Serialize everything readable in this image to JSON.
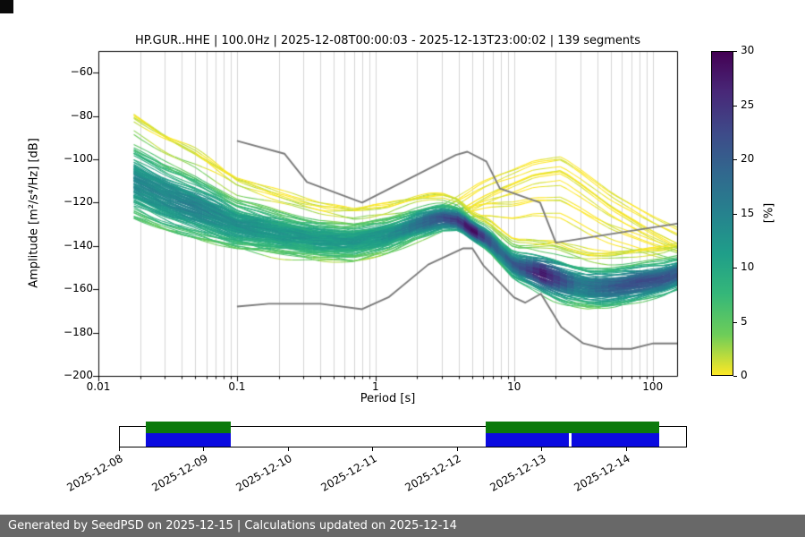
{
  "title": "HP.GUR..HHE | 100.0Hz | 2025-12-08T00:00:03 - 2025-12-13T23:00:02 | 139 segments",
  "axes": {
    "xlabel": "Period [s]",
    "ylabel": "Amplitude [m²/s⁴/Hz] [dB]",
    "x_ticks": [
      "0.01",
      "0.1",
      "1",
      "10",
      "100"
    ],
    "x_tick_values": [
      0.01,
      0.1,
      1,
      10,
      100
    ],
    "y_ticks": [
      "−60",
      "−80",
      "−100",
      "−120",
      "−140",
      "−160",
      "−180",
      "−200"
    ],
    "y_tick_values": [
      -60,
      -80,
      -100,
      -120,
      -140,
      -160,
      -180,
      -200
    ]
  },
  "colorbar": {
    "label": "[%]",
    "tick_labels": [
      "0",
      "5",
      "10",
      "15",
      "20",
      "25",
      "30"
    ],
    "tick_values": [
      0,
      5,
      10,
      15,
      20,
      25,
      30
    ],
    "range": [
      0,
      30
    ],
    "colormap": "viridis_r"
  },
  "chart_data": {
    "type": "heatmap",
    "subtype": "ppsd-probabilistic-power-spectral-density",
    "title": "HP.GUR..HHE | 100.0Hz | 2025-12-08T00:00:03 - 2025-12-13T23:00:02 | 139 segments",
    "xlabel": "Period [s]",
    "ylabel": "Amplitude [m²/s⁴/Hz] [dB]",
    "x_scale": "log",
    "x_range": [
      0.01,
      150
    ],
    "y_range": [
      -200,
      -50
    ],
    "grid": "vertical-log-major-and-minor",
    "legend": "none",
    "n_segments": 139,
    "colorbar": {
      "label": "[%]",
      "range": [
        0,
        30
      ],
      "colormap": "viridis_r"
    },
    "psd_median_db": {
      "periods": [
        0.018,
        0.03,
        0.05,
        0.1,
        0.2,
        0.4,
        0.7,
        1.2,
        2,
        3,
        4,
        5,
        6.5,
        8,
        10,
        13,
        18,
        25,
        35,
        50,
        80,
        120,
        150
      ],
      "db": [
        -110,
        -117,
        -122,
        -130,
        -134,
        -137,
        -138,
        -135,
        -130,
        -127,
        -128,
        -133,
        -137,
        -143,
        -149,
        -151,
        -154,
        -157,
        -159,
        -159,
        -157,
        -155,
        -153
      ]
    },
    "psd_spread_db": {
      "periods": [
        0.018,
        0.05,
        0.1,
        0.3,
        1,
        2.5,
        5,
        10,
        20,
        50,
        150
      ],
      "spread": [
        12,
        10,
        8,
        6.5,
        5.5,
        4.5,
        3,
        4.5,
        6.5,
        6,
        5
      ]
    },
    "peak_probability_percent": {
      "periods": [
        0.018,
        0.05,
        0.1,
        0.3,
        0.8,
        1.5,
        2.5,
        4,
        5,
        6,
        8,
        12,
        16,
        20,
        30,
        50,
        80,
        120,
        150
      ],
      "percent": [
        14,
        15,
        13,
        12,
        12,
        14,
        20,
        24,
        30,
        24,
        18,
        22,
        28,
        24,
        16,
        20,
        22,
        22,
        20
      ]
    },
    "high_noise_branch_db": {
      "periods": [
        1,
        2,
        4,
        8,
        14,
        22,
        30,
        50,
        100,
        150
      ],
      "db": [
        -133,
        -128,
        -120,
        -110,
        -103,
        -101,
        -107,
        -118,
        -130,
        -136
      ]
    },
    "noise_models": {
      "color": "#7a7a7a",
      "nhnm": {
        "periods": [
          0.1,
          0.22,
          0.32,
          0.8,
          3.8,
          4.6,
          6.3,
          7.9,
          15.4,
          20,
          150
        ],
        "db": [
          -91.5,
          -97.4,
          -110.5,
          -120,
          -98,
          -96.5,
          -101,
          -113.5,
          -120,
          -138.5,
          -129.7
        ]
      },
      "nlnm": {
        "periods": [
          0.1,
          0.17,
          0.4,
          0.8,
          1.24,
          2.4,
          4.3,
          5,
          6,
          10,
          12,
          15.6,
          21.9,
          31.6,
          45,
          70,
          101,
          150
        ],
        "db": [
          -168,
          -166.7,
          -166.7,
          -169.2,
          -163.7,
          -148.6,
          -141.1,
          -141.1,
          -149,
          -163.8,
          -166.2,
          -162.1,
          -177.5,
          -185,
          -187.5,
          -187.5,
          -185,
          -185
        ]
      }
    }
  },
  "timeline": {
    "day_labels": [
      "2025-12-08",
      "2025-12-09",
      "2025-12-10",
      "2025-12-11",
      "2025-12-12",
      "2025-12-13",
      "2025-12-14"
    ],
    "total_days": 6.72,
    "coverage_spans_days": [
      [
        0.32,
        1.32
      ],
      [
        4.34,
        6.39
      ]
    ],
    "blue_gap_day": 5.33,
    "colors": {
      "green": "#0c7a0c",
      "blue": "#0b0be0"
    }
  },
  "footer": {
    "text": "Generated by SeedPSD on 2025-12-15 | Calculations updated on 2025-12-14"
  }
}
